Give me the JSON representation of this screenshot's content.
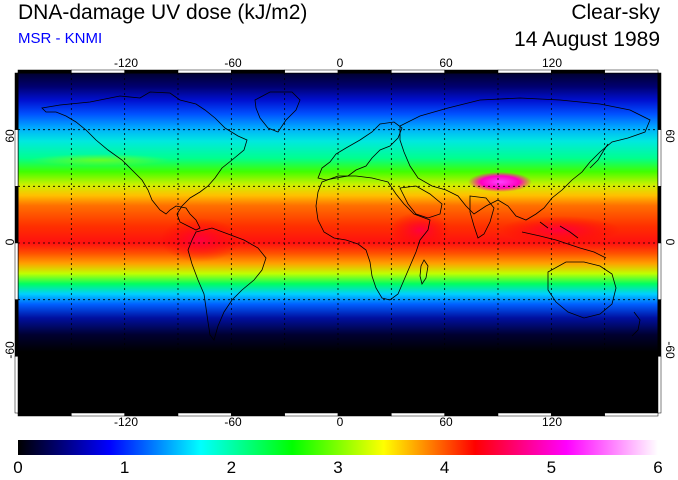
{
  "header": {
    "title": "DNA-damage UV dose (kJ/m2)",
    "source": "MSR - KNMI",
    "condition": "Clear-sky",
    "date": "14 August 1989"
  },
  "colors": {
    "source_text": "#0000ff",
    "frame": "#000000",
    "grid": "#000000",
    "coastline": "#000000"
  },
  "map": {
    "projection": "equirectangular",
    "lon_range": [
      -180,
      180
    ],
    "lat_range": [
      -90,
      90
    ],
    "lon_ticks": [
      "-120",
      "-60",
      "0",
      "60",
      "120"
    ],
    "lat_ticks": [
      "60",
      "0",
      "-60"
    ],
    "grid": "dashed, every 30 degrees"
  },
  "colorbar": {
    "min": 0,
    "max": 6,
    "labels": [
      "0",
      "1",
      "2",
      "3",
      "4",
      "5",
      "6"
    ],
    "stops": [
      "#000000",
      "#0000ff",
      "#00ffff",
      "#00ff00",
      "#ffff00",
      "#ff0000",
      "#ff00ff",
      "#ffffff"
    ]
  }
}
